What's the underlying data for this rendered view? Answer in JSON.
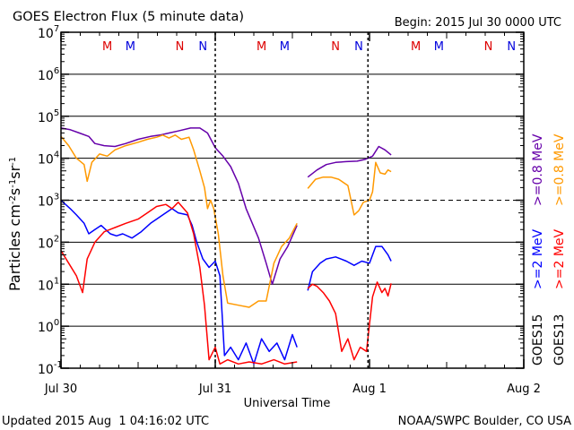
{
  "chart_data": {
    "type": "line",
    "title": "GOES Electron Flux (5 minute data)",
    "begin_label": "Begin: 2015 Jul 30 0000 UTC",
    "xlabel": "Universal Time",
    "ylabel_parts": [
      "Particles cm",
      "-2",
      "s",
      "-1",
      "sr",
      "-1"
    ],
    "x_unit": "days since 2015 Jul 30 0000 UTC",
    "xlim": [
      0,
      3
    ],
    "x_ticks": [
      {
        "x": 0,
        "label": "Jul 30"
      },
      {
        "x": 1,
        "label": "Jul 31"
      },
      {
        "x": 2,
        "label": "Aug 1"
      },
      {
        "x": 3,
        "label": "Aug 2"
      }
    ],
    "ylog": true,
    "ylim_exp": [
      -1,
      7
    ],
    "y_ticks": [
      {
        "exp": -1,
        "base": "10",
        "sup": "-1"
      },
      {
        "exp": 0,
        "base": "10",
        "sup": "0"
      },
      {
        "exp": 1,
        "base": "10",
        "sup": "1"
      },
      {
        "exp": 2,
        "base": "10",
        "sup": "2"
      },
      {
        "exp": 3,
        "base": "10",
        "sup": "3"
      },
      {
        "exp": 4,
        "base": "10",
        "sup": "4"
      },
      {
        "exp": 5,
        "base": "10",
        "sup": "5"
      },
      {
        "exp": 6,
        "base": "10",
        "sup": "6"
      },
      {
        "exp": 7,
        "base": "10",
        "sup": "7"
      }
    ],
    "threshold_exp": 3,
    "eclipse_markers": [
      {
        "x": 0.3,
        "label": "M",
        "color": "#dd0000"
      },
      {
        "x": 0.45,
        "label": "M",
        "color": "#0000dd"
      },
      {
        "x": 0.77,
        "label": "N",
        "color": "#dd0000"
      },
      {
        "x": 0.92,
        "label": "N",
        "color": "#0000dd"
      },
      {
        "x": 1.3,
        "label": "M",
        "color": "#dd0000"
      },
      {
        "x": 1.45,
        "label": "M",
        "color": "#0000dd"
      },
      {
        "x": 1.78,
        "label": "N",
        "color": "#dd0000"
      },
      {
        "x": 1.93,
        "label": "N",
        "color": "#0000dd"
      },
      {
        "x": 2.3,
        "label": "M",
        "color": "#dd0000"
      },
      {
        "x": 2.45,
        "label": "M",
        "color": "#0000dd"
      },
      {
        "x": 2.77,
        "label": "N",
        "color": "#dd0000"
      },
      {
        "x": 2.92,
        "label": "N",
        "color": "#0000dd"
      }
    ],
    "local_midnight_lines": [
      1.0,
      1.99
    ],
    "legend": {
      "goes15_label": "GOES15",
      "goes13_label": "GOES13",
      "goes15_08": {
        "text": ">=0.8 MeV",
        "color": "#6600aa"
      },
      "goes13_08": {
        "text": ">=0.8 MeV",
        "color": "#ff9900"
      },
      "goes15_2": {
        "text": ">=2 MeV",
        "color": "#0000ff"
      },
      "goes13_2": {
        "text": ">=2 MeV",
        "color": "#ff0000"
      }
    },
    "series": [
      {
        "name": "GOES15 >=0.8 MeV",
        "color": "#6600aa",
        "segments": [
          [
            [
              0.0,
              4.72
            ],
            [
              0.06,
              4.68
            ],
            [
              0.12,
              4.6
            ],
            [
              0.18,
              4.52
            ],
            [
              0.22,
              4.35
            ],
            [
              0.28,
              4.3
            ],
            [
              0.35,
              4.28
            ],
            [
              0.42,
              4.35
            ],
            [
              0.5,
              4.45
            ],
            [
              0.58,
              4.52
            ],
            [
              0.64,
              4.55
            ],
            [
              0.7,
              4.6
            ],
            [
              0.76,
              4.65
            ],
            [
              0.84,
              4.72
            ],
            [
              0.9,
              4.72
            ],
            [
              0.95,
              4.6
            ],
            [
              1.0,
              4.25
            ],
            [
              1.05,
              4.05
            ],
            [
              1.1,
              3.8
            ],
            [
              1.15,
              3.4
            ],
            [
              1.2,
              2.8
            ],
            [
              1.28,
              2.1
            ],
            [
              1.33,
              1.5
            ],
            [
              1.37,
              1.0
            ],
            [
              1.42,
              1.6
            ],
            [
              1.47,
              1.9
            ],
            [
              1.5,
              2.15
            ],
            [
              1.53,
              2.4
            ]
          ],
          [
            [
              1.6,
              3.55
            ],
            [
              1.66,
              3.72
            ],
            [
              1.72,
              3.85
            ],
            [
              1.78,
              3.9
            ],
            [
              1.85,
              3.92
            ],
            [
              1.92,
              3.93
            ],
            [
              1.97,
              3.97
            ],
            [
              2.02,
              4.05
            ],
            [
              2.06,
              4.28
            ],
            [
              2.1,
              4.2
            ],
            [
              2.14,
              4.08
            ]
          ]
        ]
      },
      {
        "name": "GOES13 >=0.8 MeV",
        "color": "#ff9900",
        "segments": [
          [
            [
              0.0,
              4.52
            ],
            [
              0.05,
              4.3
            ],
            [
              0.1,
              4.0
            ],
            [
              0.15,
              3.85
            ],
            [
              0.17,
              3.45
            ],
            [
              0.2,
              3.9
            ],
            [
              0.25,
              4.1
            ],
            [
              0.3,
              4.05
            ],
            [
              0.35,
              4.2
            ],
            [
              0.42,
              4.3
            ],
            [
              0.5,
              4.38
            ],
            [
              0.56,
              4.45
            ],
            [
              0.62,
              4.5
            ],
            [
              0.66,
              4.55
            ],
            [
              0.7,
              4.48
            ],
            [
              0.74,
              4.55
            ],
            [
              0.78,
              4.45
            ],
            [
              0.83,
              4.5
            ],
            [
              0.86,
              4.2
            ],
            [
              0.9,
              3.7
            ],
            [
              0.93,
              3.3
            ],
            [
              0.95,
              2.8
            ],
            [
              0.97,
              3.0
            ],
            [
              0.99,
              2.8
            ],
            [
              1.02,
              2.2
            ],
            [
              1.05,
              1.2
            ],
            [
              1.08,
              0.55
            ],
            [
              1.15,
              0.5
            ],
            [
              1.22,
              0.45
            ],
            [
              1.28,
              0.6
            ],
            [
              1.33,
              0.6
            ],
            [
              1.38,
              1.5
            ],
            [
              1.43,
              1.9
            ],
            [
              1.48,
              2.1
            ],
            [
              1.53,
              2.45
            ]
          ],
          [
            [
              1.6,
              3.28
            ],
            [
              1.65,
              3.5
            ],
            [
              1.7,
              3.55
            ],
            [
              1.75,
              3.55
            ],
            [
              1.8,
              3.5
            ],
            [
              1.86,
              3.35
            ],
            [
              1.9,
              2.65
            ],
            [
              1.93,
              2.75
            ],
            [
              1.96,
              2.95
            ],
            [
              2.0,
              3.0
            ],
            [
              2.02,
              3.2
            ],
            [
              2.04,
              3.9
            ],
            [
              2.07,
              3.65
            ],
            [
              2.1,
              3.62
            ],
            [
              2.12,
              3.72
            ],
            [
              2.14,
              3.68
            ]
          ]
        ]
      },
      {
        "name": "GOES15 >=2 MeV",
        "color": "#0000ff",
        "segments": [
          [
            [
              0.0,
              3.0
            ],
            [
              0.06,
              2.8
            ],
            [
              0.1,
              2.65
            ],
            [
              0.15,
              2.45
            ],
            [
              0.18,
              2.2
            ],
            [
              0.22,
              2.3
            ],
            [
              0.26,
              2.4
            ],
            [
              0.32,
              2.2
            ],
            [
              0.36,
              2.15
            ],
            [
              0.4,
              2.2
            ],
            [
              0.46,
              2.1
            ],
            [
              0.52,
              2.25
            ],
            [
              0.58,
              2.45
            ],
            [
              0.62,
              2.55
            ],
            [
              0.66,
              2.65
            ],
            [
              0.72,
              2.8
            ],
            [
              0.76,
              2.7
            ],
            [
              0.82,
              2.65
            ],
            [
              0.85,
              2.4
            ],
            [
              0.88,
              2.0
            ],
            [
              0.92,
              1.6
            ],
            [
              0.96,
              1.4
            ],
            [
              1.0,
              1.55
            ],
            [
              1.03,
              1.2
            ],
            [
              1.06,
              -0.7
            ],
            [
              1.1,
              -0.5
            ],
            [
              1.15,
              -0.8
            ],
            [
              1.2,
              -0.4
            ],
            [
              1.25,
              -0.9
            ],
            [
              1.3,
              -0.3
            ],
            [
              1.35,
              -0.6
            ],
            [
              1.4,
              -0.4
            ],
            [
              1.45,
              -0.8
            ],
            [
              1.5,
              -0.2
            ],
            [
              1.53,
              -0.5
            ]
          ],
          [
            [
              1.6,
              0.85
            ],
            [
              1.63,
              1.3
            ],
            [
              1.68,
              1.5
            ],
            [
              1.72,
              1.6
            ],
            [
              1.78,
              1.65
            ],
            [
              1.85,
              1.55
            ],
            [
              1.9,
              1.45
            ],
            [
              1.95,
              1.55
            ],
            [
              2.0,
              1.5
            ],
            [
              2.04,
              1.9
            ],
            [
              2.08,
              1.9
            ],
            [
              2.12,
              1.7
            ],
            [
              2.14,
              1.55
            ]
          ]
        ]
      },
      {
        "name": "GOES13 >=2 MeV",
        "color": "#ff0000",
        "segments": [
          [
            [
              0.0,
              1.8
            ],
            [
              0.05,
              1.5
            ],
            [
              0.1,
              1.2
            ],
            [
              0.14,
              0.8
            ],
            [
              0.17,
              1.6
            ],
            [
              0.22,
              2.0
            ],
            [
              0.28,
              2.25
            ],
            [
              0.35,
              2.35
            ],
            [
              0.42,
              2.45
            ],
            [
              0.5,
              2.55
            ],
            [
              0.56,
              2.7
            ],
            [
              0.62,
              2.85
            ],
            [
              0.68,
              2.9
            ],
            [
              0.72,
              2.8
            ],
            [
              0.76,
              2.95
            ],
            [
              0.82,
              2.7
            ],
            [
              0.86,
              2.2
            ],
            [
              0.9,
              1.4
            ],
            [
              0.93,
              0.5
            ],
            [
              0.96,
              -0.8
            ],
            [
              1.0,
              -0.5
            ],
            [
              1.03,
              -0.9
            ],
            [
              1.08,
              -0.8
            ],
            [
              1.15,
              -0.9
            ],
            [
              1.22,
              -0.85
            ],
            [
              1.3,
              -0.9
            ],
            [
              1.38,
              -0.8
            ],
            [
              1.45,
              -0.9
            ],
            [
              1.53,
              -0.85
            ]
          ],
          [
            [
              1.6,
              0.9
            ],
            [
              1.63,
              1.0
            ],
            [
              1.66,
              0.95
            ],
            [
              1.7,
              0.8
            ],
            [
              1.74,
              0.6
            ],
            [
              1.78,
              0.3
            ],
            [
              1.82,
              -0.6
            ],
            [
              1.86,
              -0.3
            ],
            [
              1.9,
              -0.8
            ],
            [
              1.94,
              -0.5
            ],
            [
              1.98,
              -0.6
            ],
            [
              2.02,
              0.7
            ],
            [
              2.05,
              1.05
            ],
            [
              2.08,
              0.8
            ],
            [
              2.1,
              0.9
            ],
            [
              2.12,
              0.72
            ],
            [
              2.14,
              1.02
            ]
          ]
        ]
      }
    ]
  },
  "footer": {
    "updated": "Updated 2015 Aug  1 04:16:02 UTC",
    "credit": "NOAA/SWPC Boulder, CO USA"
  }
}
